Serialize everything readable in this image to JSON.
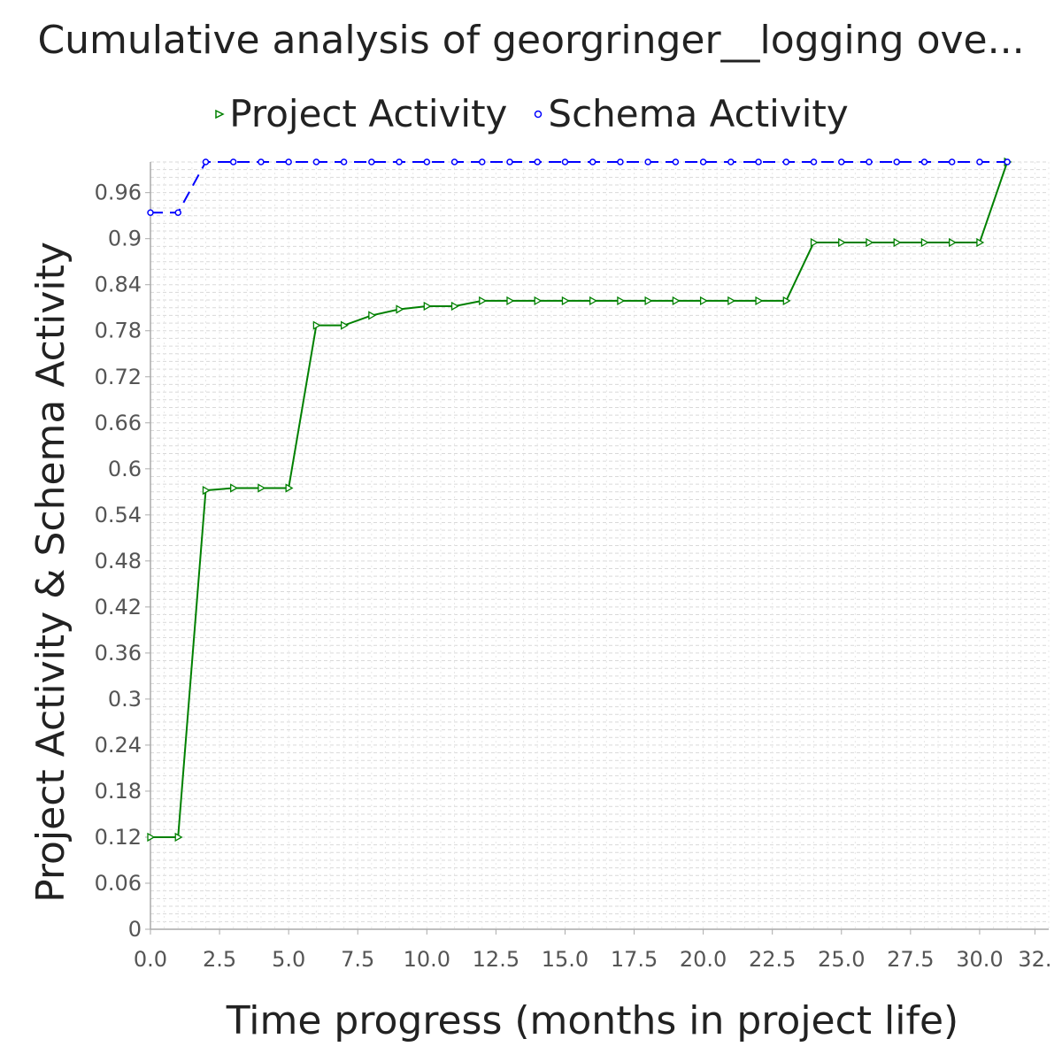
{
  "chart_data": {
    "type": "line",
    "title": "Cumulative analysis of georgringer__logging ove...",
    "xlabel": "Time progress (months in project life)",
    "ylabel": "Project Activity & Schema Activity",
    "xlim": [
      0,
      32.5
    ],
    "ylim": [
      0,
      1.0
    ],
    "x_ticks": [
      "0.0",
      "2.5",
      "5.0",
      "7.5",
      "10.0",
      "12.5",
      "15.0",
      "17.5",
      "20.0",
      "22.5",
      "25.0",
      "27.5",
      "30.0",
      "32."
    ],
    "y_ticks": [
      "0",
      "0.06",
      "0.12",
      "0.18",
      "0.24",
      "0.3",
      "0.36",
      "0.42",
      "0.48",
      "0.54",
      "0.6",
      "0.66",
      "0.72",
      "0.78",
      "0.84",
      "0.9",
      "0.96"
    ],
    "grid": true,
    "legend_position": "top",
    "series": [
      {
        "name": "Project Activity",
        "color": "#008000",
        "marker": "triangle-right",
        "line_style": "solid",
        "x": [
          0,
          1,
          2,
          3,
          4,
          5,
          6,
          7,
          8,
          9,
          10,
          11,
          12,
          13,
          14,
          15,
          16,
          17,
          18,
          19,
          20,
          21,
          22,
          23,
          24,
          25,
          26,
          27,
          28,
          29,
          30,
          31
        ],
        "values": [
          0.12,
          0.12,
          0.572,
          0.575,
          0.575,
          0.575,
          0.787,
          0.787,
          0.8,
          0.808,
          0.812,
          0.812,
          0.819,
          0.819,
          0.819,
          0.819,
          0.819,
          0.819,
          0.819,
          0.819,
          0.819,
          0.819,
          0.819,
          0.819,
          0.895,
          0.895,
          0.895,
          0.895,
          0.895,
          0.895,
          0.895,
          1.0
        ]
      },
      {
        "name": "Schema Activity",
        "color": "#0000ff",
        "marker": "circle",
        "line_style": "dashed",
        "x": [
          0,
          1,
          2,
          3,
          4,
          5,
          6,
          7,
          8,
          9,
          10,
          11,
          12,
          13,
          14,
          15,
          16,
          17,
          18,
          19,
          20,
          21,
          22,
          23,
          24,
          25,
          26,
          27,
          28,
          29,
          30,
          31
        ],
        "values": [
          0.934,
          0.934,
          1.0,
          1.0,
          1.0,
          1.0,
          1.0,
          1.0,
          1.0,
          1.0,
          1.0,
          1.0,
          1.0,
          1.0,
          1.0,
          1.0,
          1.0,
          1.0,
          1.0,
          1.0,
          1.0,
          1.0,
          1.0,
          1.0,
          1.0,
          1.0,
          1.0,
          1.0,
          1.0,
          1.0,
          1.0,
          1.0
        ]
      }
    ]
  }
}
